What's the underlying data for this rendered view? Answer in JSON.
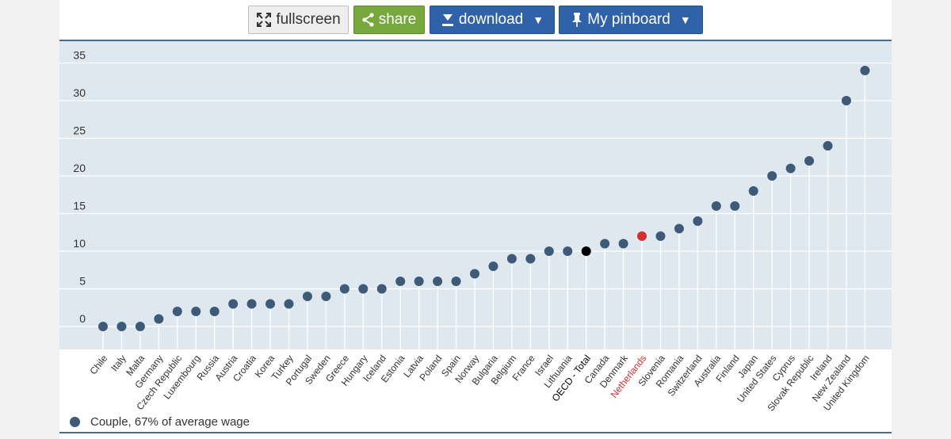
{
  "toolbar": {
    "fullscreen_label": "fullscreen",
    "share_label": "share",
    "download_label": "download",
    "pinboard_label": "My pinboard"
  },
  "colors": {
    "plot_background": "#dfe8ef",
    "point": "#3d5a78",
    "highlight": "#d32f2f",
    "total": "#000000",
    "share_button": "#76a83b",
    "blue_button": "#2f62a8"
  },
  "icons": {
    "fullscreen": "expand-arrows-icon",
    "share": "share-nodes-icon",
    "download": "download-arrow-icon",
    "pinboard": "pushpin-icon"
  },
  "chart_data": {
    "type": "scatter",
    "style": "lollipop",
    "title": "",
    "xlabel": "",
    "ylabel": "",
    "ylim": [
      -3,
      36
    ],
    "yticks": [
      0,
      5,
      10,
      15,
      20,
      25,
      30,
      35
    ],
    "grid": true,
    "legend_position": "bottom-left",
    "categories": [
      "Chile",
      "Italy",
      "Malta",
      "Germany",
      "Czech Republic",
      "Luxembourg",
      "Russia",
      "Austria",
      "Croatia",
      "Korea",
      "Turkey",
      "Portugal",
      "Sweden",
      "Greece",
      "Hungary",
      "Iceland",
      "Estonia",
      "Latvia",
      "Poland",
      "Spain",
      "Norway",
      "Bulgaria",
      "Belgium",
      "France",
      "Israel",
      "Lithuania",
      "OECD - Total",
      "Canada",
      "Denmark",
      "Netherlands",
      "Slovenia",
      "Romania",
      "Switzerland",
      "Australia",
      "Finland",
      "Japan",
      "United States",
      "Cyprus",
      "Slovak Republic",
      "Ireland",
      "New Zealand",
      "United Kingdom"
    ],
    "series": [
      {
        "name": "Couple, 67% of average wage",
        "values": [
          0,
          0,
          0,
          1,
          2,
          2,
          2,
          3,
          3,
          3,
          3,
          4,
          4,
          5,
          5,
          5,
          6,
          6,
          6,
          6,
          7,
          8,
          9,
          9,
          10,
          10,
          10,
          11,
          11,
          12,
          12,
          13,
          14,
          16,
          16,
          18,
          20,
          21,
          22,
          24,
          30,
          34
        ]
      }
    ],
    "highlighted": [
      "Netherlands"
    ],
    "total_category": "OECD - Total"
  }
}
